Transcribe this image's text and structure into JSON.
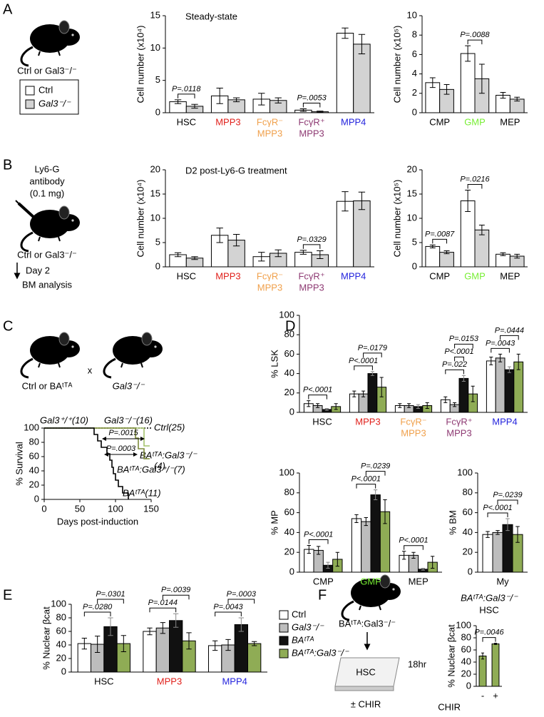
{
  "panels": [
    "A",
    "B",
    "C",
    "D",
    "E",
    "F"
  ],
  "illustrations": {
    "a_strain": "Ctrl or Gal3⁻/⁻",
    "a_legend": [
      "Ctrl",
      "Gal3⁻/⁻"
    ],
    "b_treatment": [
      "Ly6-G",
      "antibody",
      "(0.1 mg)"
    ],
    "b_strain": "Ctrl or Gal3⁻/⁻",
    "b_day": "Day 2",
    "b_analysis": "BM analysis",
    "c_strain_left": "Ctrl or BAᵗᵀᴬ",
    "c_cross": "x",
    "c_strain_right": "Gal3⁻/⁻",
    "f_strain": "BAᵗᵀᴬ:Gal3⁻/⁻",
    "f_well": "HSC",
    "f_time": "18hr",
    "f_treatment": "± CHIR"
  },
  "chart_data": [
    {
      "type": "bar",
      "title": "Steady-state",
      "ylabel": "Cell number (x10⁴)",
      "ylim": [
        0,
        15
      ],
      "yticks": [
        0,
        5,
        10,
        15
      ],
      "categories": [
        [
          "HSC"
        ],
        [
          "MPP3"
        ],
        [
          "FcγR⁻",
          "MPP3"
        ],
        [
          "FcγR⁺",
          "MPP3"
        ],
        [
          "MPP4"
        ]
      ],
      "category_colors": [
        "#000000",
        "#e0201b",
        "#f0a04b",
        "#8e3a73",
        "#2222dd"
      ],
      "series": [
        {
          "name": "Ctrl",
          "color": "#ffffff",
          "values": [
            1.7,
            2.6,
            2.1,
            0.4,
            12.3
          ],
          "errors": [
            0.3,
            1.2,
            0.9,
            0.2,
            0.8
          ]
        },
        {
          "name": "Gal3⁻/⁻",
          "color": "#d3d3d3",
          "values": [
            1.0,
            2.0,
            1.9,
            0.15,
            10.6
          ],
          "errors": [
            0.3,
            0.3,
            0.4,
            0.1,
            1.5
          ]
        }
      ],
      "comparisons": [
        {
          "label": "P=.0118",
          "a": [
            0,
            0
          ],
          "b": [
            0,
            1
          ]
        },
        {
          "label": "P=.0053",
          "a": [
            3,
            0
          ],
          "b": [
            3,
            1
          ]
        }
      ]
    },
    {
      "type": "bar",
      "ylabel": "Cell number (x10⁵)",
      "ylim": [
        0,
        10
      ],
      "yticks": [
        0,
        2,
        4,
        6,
        8,
        10
      ],
      "categories": [
        [
          "CMP"
        ],
        [
          "GMP"
        ],
        [
          "MEP"
        ]
      ],
      "category_colors": [
        "#000000",
        "#77ee33",
        "#000000"
      ],
      "series": [
        {
          "name": "Ctrl",
          "color": "#ffffff",
          "values": [
            3.1,
            6.1,
            1.8
          ],
          "errors": [
            0.5,
            0.8,
            0.3
          ]
        },
        {
          "name": "Gal3⁻/⁻",
          "color": "#d3d3d3",
          "values": [
            2.4,
            3.5,
            1.4
          ],
          "errors": [
            0.5,
            1.5,
            0.2
          ]
        }
      ],
      "comparisons": [
        {
          "label": "P=.0088",
          "a": [
            1,
            0
          ],
          "b": [
            1,
            1
          ]
        }
      ]
    },
    {
      "type": "bar",
      "title": "D2 post-Ly6-G treatment",
      "ylabel": "Cell number (x10⁴)",
      "ylim": [
        0,
        20
      ],
      "yticks": [
        0,
        5,
        10,
        15,
        20
      ],
      "categories": [
        [
          "HSC"
        ],
        [
          "MPP3"
        ],
        [
          "FcγR⁻",
          "MPP3"
        ],
        [
          "FcγR⁺",
          "MPP3"
        ],
        [
          "MPP4"
        ]
      ],
      "category_colors": [
        "#000000",
        "#e0201b",
        "#f0a04b",
        "#8e3a73",
        "#2222dd"
      ],
      "series": [
        {
          "name": "Ctrl",
          "color": "#ffffff",
          "values": [
            2.5,
            6.5,
            2.1,
            3.0,
            13.5
          ],
          "errors": [
            0.4,
            1.5,
            0.9,
            0.4,
            2.0
          ]
        },
        {
          "name": "Gal3⁻/⁻",
          "color": "#d3d3d3",
          "values": [
            1.8,
            5.5,
            2.8,
            2.5,
            13.6
          ],
          "errors": [
            0.3,
            1.2,
            0.7,
            0.8,
            1.8
          ]
        }
      ],
      "comparisons": [
        {
          "label": "P=.0329",
          "a": [
            3,
            0
          ],
          "b": [
            3,
            1
          ]
        }
      ]
    },
    {
      "type": "bar",
      "ylabel": "Cell number (x10⁵)",
      "ylim": [
        0,
        20
      ],
      "yticks": [
        0,
        5,
        10,
        15,
        20
      ],
      "categories": [
        [
          "CMP"
        ],
        [
          "GMP"
        ],
        [
          "MEP"
        ]
      ],
      "category_colors": [
        "#000000",
        "#77ee33",
        "#000000"
      ],
      "series": [
        {
          "name": "Ctrl",
          "color": "#ffffff",
          "values": [
            4.2,
            13.6,
            2.6
          ],
          "errors": [
            0.3,
            2.2,
            0.3
          ]
        },
        {
          "name": "Gal3⁻/⁻",
          "color": "#d3d3d3",
          "values": [
            3.0,
            7.6,
            2.2
          ],
          "errors": [
            0.3,
            1.0,
            0.4
          ]
        }
      ],
      "comparisons": [
        {
          "label": "P=.0087",
          "a": [
            0,
            0
          ],
          "b": [
            0,
            1
          ]
        },
        {
          "label": "P=.0216",
          "a": [
            1,
            0
          ],
          "b": [
            1,
            1
          ]
        }
      ]
    },
    {
      "type": "survival",
      "xlabel": "Days post-induction",
      "ylabel": "% Survival",
      "xlim": [
        0,
        150
      ],
      "xticks": [
        0,
        50,
        100,
        150
      ],
      "ylim": [
        0,
        100
      ],
      "yticks": [
        0,
        20,
        40,
        60,
        80,
        100
      ],
      "top_labels": [
        "Gal3⁺/⁺(10)",
        "Gal3⁻/⁻(16)"
      ],
      "series": [
        {
          "name": [
            "Ctrl(25)"
          ],
          "color": "#000000",
          "style": "dotted",
          "x": [
            0,
            150
          ],
          "values": [
            100,
            100
          ]
        },
        {
          "name": [
            "BAᵗᵀᴬ:Gal3⁻/⁻",
            "(4)"
          ],
          "color": "#a4c26a",
          "x": [
            0,
            140,
            148
          ],
          "values": [
            100,
            75,
            75
          ]
        },
        {
          "name": [
            "BAᵗᵀᴬ:Gal3⁺/⁻(7)"
          ],
          "color": "#7d8b3a",
          "x": [
            0,
            128,
            132,
            140,
            148
          ],
          "values": [
            100,
            86,
            71,
            57,
            57
          ]
        },
        {
          "name": [
            "BAᵗᵀᴬ(11)"
          ],
          "color": "#000000",
          "x": [
            0,
            70,
            75,
            80,
            88,
            92,
            95,
            97,
            100,
            104,
            110,
            118
          ],
          "values": [
            100,
            91,
            82,
            73,
            64,
            55,
            45,
            36,
            27,
            18,
            9,
            0
          ]
        }
      ],
      "comparisons": [
        {
          "label": "P=.0015",
          "x": [
            82,
            140
          ],
          "y": 85
        },
        {
          "label": "P=.0003",
          "x": [
            85,
            130
          ],
          "y": 63
        }
      ]
    },
    {
      "type": "bar",
      "ylabel": "% LSK",
      "ylim": [
        0,
        100
      ],
      "yticks": [
        0,
        20,
        40,
        60,
        80,
        100
      ],
      "categories": [
        [
          "HSC"
        ],
        [
          "MPP3"
        ],
        [
          "FcγR⁻",
          "MPP3"
        ],
        [
          "FcγR⁺",
          "MPP3"
        ],
        [
          "MPP4"
        ]
      ],
      "category_colors": [
        "#000000",
        "#e0201b",
        "#f0a04b",
        "#8e3a73",
        "#2222dd"
      ],
      "series": [
        {
          "name": "Ctrl",
          "color": "#ffffff",
          "values": [
            9,
            19,
            7,
            13,
            53
          ],
          "errors": [
            3,
            3,
            2,
            3,
            4
          ]
        },
        {
          "name": "Gal3⁻/⁻",
          "color": "#bdbdbd",
          "values": [
            7,
            19,
            7,
            8,
            56
          ],
          "errors": [
            2,
            3,
            2,
            2,
            4
          ]
        },
        {
          "name": "BAᵗᵀᴬ",
          "color": "#111111",
          "values": [
            3,
            40,
            6,
            35,
            44
          ],
          "errors": [
            1,
            2,
            2,
            3,
            3
          ]
        },
        {
          "name": "BAᵗᵀᴬ:Gal3⁻/⁻",
          "color": "#8fac55",
          "values": [
            6,
            26,
            7,
            19,
            52
          ],
          "errors": [
            3,
            10,
            3,
            8,
            8
          ]
        }
      ],
      "comparisons": [
        {
          "label": "P<.0001",
          "a": [
            0,
            0
          ],
          "b": [
            0,
            2
          ]
        },
        {
          "label": "P<.0001",
          "a": [
            1,
            0
          ],
          "b": [
            1,
            2
          ]
        },
        {
          "label": "P=.0179",
          "a": [
            1,
            1
          ],
          "b": [
            1,
            3
          ]
        },
        {
          "label": "P=.022",
          "a": [
            3,
            0
          ],
          "b": [
            3,
            2
          ]
        },
        {
          "label": "P<.0001",
          "a": [
            3,
            1
          ],
          "b": [
            3,
            2
          ]
        },
        {
          "label": "P=.0153",
          "a": [
            3,
            1
          ],
          "b": [
            3,
            3
          ]
        },
        {
          "label": "P=.0043",
          "a": [
            4,
            0
          ],
          "b": [
            4,
            2
          ]
        },
        {
          "label": "P=.0444",
          "a": [
            4,
            1
          ],
          "b": [
            4,
            3
          ]
        }
      ]
    },
    {
      "type": "bar",
      "ylabel": "% MP",
      "ylim": [
        0,
        100
      ],
      "yticks": [
        0,
        20,
        40,
        60,
        80,
        100
      ],
      "categories": [
        [
          "CMP"
        ],
        [
          "GMP"
        ],
        [
          "MEP"
        ]
      ],
      "category_colors": [
        "#000000",
        "#77ee33",
        "#000000"
      ],
      "series": [
        {
          "name": "Ctrl",
          "color": "#ffffff",
          "values": [
            23,
            54,
            17
          ],
          "errors": [
            4,
            4,
            4
          ]
        },
        {
          "name": "Gal3⁻/⁻",
          "color": "#bdbdbd",
          "values": [
            22,
            51,
            17
          ],
          "errors": [
            4,
            4,
            3
          ]
        },
        {
          "name": "BAᵗᵀᴬ",
          "color": "#111111",
          "values": [
            7,
            78,
            3
          ],
          "errors": [
            3,
            5,
            1
          ]
        },
        {
          "name": "BAᵗᵀᴬ:Gal3⁻/⁻",
          "color": "#8fac55",
          "values": [
            13,
            61,
            10
          ],
          "errors": [
            7,
            12,
            6
          ]
        }
      ],
      "comparisons": [
        {
          "label": "P<.0001",
          "a": [
            0,
            0
          ],
          "b": [
            0,
            2
          ]
        },
        {
          "label": "P<.0001",
          "a": [
            1,
            0
          ],
          "b": [
            1,
            2
          ]
        },
        {
          "label": "P=.0239",
          "a": [
            1,
            1
          ],
          "b": [
            1,
            3
          ]
        },
        {
          "label": "P<.0001",
          "a": [
            2,
            0
          ],
          "b": [
            2,
            2
          ]
        }
      ]
    },
    {
      "type": "bar",
      "ylabel": "% BM",
      "ylim": [
        0,
        100
      ],
      "yticks": [
        0,
        20,
        40,
        60,
        80,
        100
      ],
      "categories": [
        [
          "My"
        ]
      ],
      "category_colors": [
        "#000000"
      ],
      "series": [
        {
          "name": "Ctrl",
          "color": "#ffffff",
          "values": [
            38
          ],
          "errors": [
            3
          ]
        },
        {
          "name": "Gal3⁻/⁻",
          "color": "#bdbdbd",
          "values": [
            40
          ],
          "errors": [
            2
          ]
        },
        {
          "name": "BAᵗᵀᴬ",
          "color": "#111111",
          "values": [
            48
          ],
          "errors": [
            6
          ]
        },
        {
          "name": "BAᵗᵀᴬ:Gal3⁻/⁻",
          "color": "#8fac55",
          "values": [
            38
          ],
          "errors": [
            8
          ]
        }
      ],
      "comparisons": [
        {
          "label": "P<.0001",
          "a": [
            0,
            0
          ],
          "b": [
            0,
            2
          ]
        },
        {
          "label": "P=.0239",
          "a": [
            0,
            1
          ],
          "b": [
            0,
            3
          ]
        }
      ]
    },
    {
      "type": "bar",
      "ylabel": "% Nuclear βcat",
      "ylim": [
        0,
        100
      ],
      "yticks": [
        0,
        20,
        40,
        60,
        80,
        100
      ],
      "legend": true,
      "categories": [
        [
          "HSC"
        ],
        [
          "MPP3"
        ],
        [
          "MPP4"
        ]
      ],
      "category_colors": [
        "#000000",
        "#e0201b",
        "#2222dd"
      ],
      "series": [
        {
          "name": "Ctrl",
          "color": "#ffffff",
          "values": [
            42,
            60,
            39
          ],
          "errors": [
            8,
            5,
            7
          ]
        },
        {
          "name": "Gal3⁻/⁻",
          "color": "#bdbdbd",
          "values": [
            41,
            65,
            40
          ],
          "errors": [
            12,
            8,
            8
          ]
        },
        {
          "name": "BAᵗᵀᴬ",
          "color": "#111111",
          "values": [
            67,
            76,
            70
          ],
          "errors": [
            13,
            10,
            10
          ]
        },
        {
          "name": "BAᵗᵀᴬ:Gal3⁻/⁻",
          "color": "#8fac55",
          "values": [
            42,
            46,
            42
          ],
          "errors": [
            12,
            12,
            3
          ]
        }
      ],
      "comparisons": [
        {
          "label": "P=.0280",
          "a": [
            0,
            0
          ],
          "b": [
            0,
            2
          ]
        },
        {
          "label": "P=.0301",
          "a": [
            0,
            1
          ],
          "b": [
            0,
            3
          ]
        },
        {
          "label": "P=.0144",
          "a": [
            1,
            0
          ],
          "b": [
            1,
            2
          ]
        },
        {
          "label": "P=.0039",
          "a": [
            1,
            1
          ],
          "b": [
            1,
            3
          ]
        },
        {
          "label": "P=.0043",
          "a": [
            2,
            0
          ],
          "b": [
            2,
            2
          ]
        },
        {
          "label": "P=.0003",
          "a": [
            2,
            1
          ],
          "b": [
            2,
            3
          ]
        }
      ]
    },
    {
      "type": "bar",
      "title": [
        "BAᵗᵀᴬ:Gal3⁻/⁻",
        "HSC"
      ],
      "ylabel": "% Nuclear βcat",
      "xlabel": "CHIR",
      "ylim": [
        0,
        100
      ],
      "yticks": [
        0,
        20,
        40,
        60,
        80,
        100
      ],
      "categories": [
        [
          "-"
        ],
        [
          "+"
        ]
      ],
      "category_colors": [
        "#000000",
        "#000000"
      ],
      "series": [
        {
          "name": "BAᵗᵀᴬ:Gal3⁻/⁻",
          "color": "#8fac55",
          "values": [
            50,
            70
          ],
          "errors": [
            5,
            1
          ]
        }
      ],
      "comparisons": [
        {
          "label": "P=.0046",
          "a": [
            0,
            0
          ],
          "b": [
            1,
            0
          ]
        }
      ]
    }
  ]
}
